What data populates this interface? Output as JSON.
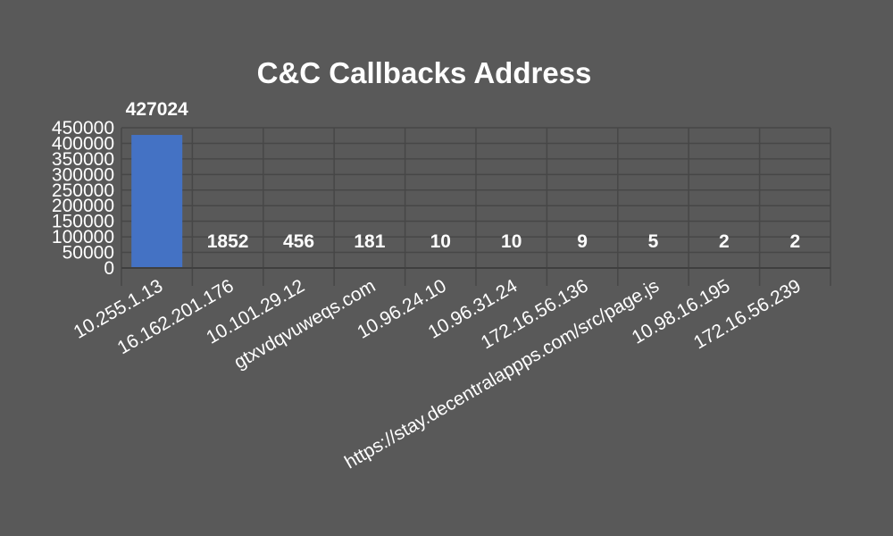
{
  "chart_data": {
    "type": "bar",
    "title": "C&C Callbacks Address",
    "xlabel": "",
    "ylabel": "",
    "categories": [
      "10.255.1.13",
      "16.162.201.176",
      "10.101.29.12",
      "gtxvdqvuweqs.com",
      "10.96.24.10",
      "10.96.31.24",
      "172.16.56.136",
      "https://stay.decentralappps.com/src/page.js",
      "10.98.16.195",
      "172.16.56.239"
    ],
    "values": [
      427024,
      1852,
      456,
      181,
      10,
      10,
      9,
      5,
      2,
      2
    ],
    "data_labels": [
      "427024",
      "1852",
      "456",
      "181",
      "10",
      "10",
      "9",
      "5",
      "2",
      "2"
    ],
    "ylim": [
      0,
      450000
    ],
    "yticks": [
      0,
      50000,
      100000,
      150000,
      200000,
      250000,
      300000,
      350000,
      400000,
      450000
    ],
    "ytick_labels": [
      "0",
      "50000",
      "100000",
      "150000",
      "200000",
      "250000",
      "300000",
      "350000",
      "400000",
      "450000"
    ],
    "grid": true,
    "legend": "none",
    "colors": {
      "background": "#595959",
      "bar": "#4472C4",
      "grid": "#474747",
      "axis": "#3f3f3f",
      "text": "#ffffff"
    }
  }
}
